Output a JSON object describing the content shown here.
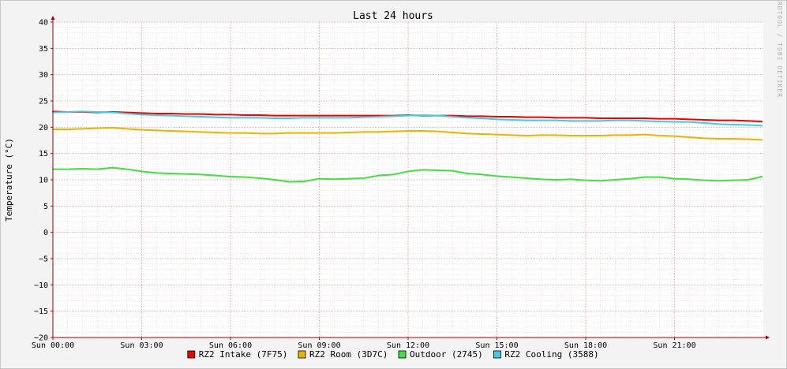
{
  "chart_data": {
    "type": "line",
    "title": "Last 24 hours",
    "ylabel": "Temperature (°C)",
    "xlabel": "",
    "watermark": "RRDTOOL / TOBI OETIKER",
    "ylim": [
      -20,
      40
    ],
    "y_ticks": [
      40,
      35,
      30,
      25,
      20,
      15,
      10,
      5,
      0,
      -5,
      -10,
      -15,
      -20
    ],
    "y_tick_labels": [
      "40",
      "35",
      "30",
      "25",
      "20",
      "15",
      "10",
      "5",
      "0",
      "−5",
      "−10",
      "−15",
      "−20"
    ],
    "xlim_hours": [
      0,
      24
    ],
    "x_ticks_hours": [
      0,
      3,
      6,
      9,
      12,
      15,
      18,
      21
    ],
    "x_tick_labels": [
      "Sun 00:00",
      "Sun 03:00",
      "Sun 06:00",
      "Sun 09:00",
      "Sun 12:00",
      "Sun 15:00",
      "Sun 18:00",
      "Sun 21:00"
    ],
    "grid": true,
    "legend_position": "bottom",
    "x_hours": [
      0,
      0.5,
      1,
      1.5,
      2,
      2.5,
      3,
      3.5,
      4,
      4.5,
      5,
      5.5,
      6,
      6.5,
      7,
      7.5,
      8,
      8.5,
      9,
      9.5,
      10,
      10.5,
      11,
      11.5,
      12,
      12.5,
      13,
      13.5,
      14,
      14.5,
      15,
      15.5,
      16,
      16.5,
      17,
      17.5,
      18,
      18.5,
      19,
      19.5,
      20,
      20.5,
      21,
      21.5,
      22,
      22.5,
      23,
      23.5,
      23.95
    ],
    "series": [
      {
        "name": "RZ2 Intake (7F75)",
        "color": "#ee0000",
        "values": [
          23.0,
          22.9,
          22.9,
          22.8,
          22.9,
          22.8,
          22.7,
          22.6,
          22.6,
          22.5,
          22.5,
          22.4,
          22.4,
          22.3,
          22.3,
          22.2,
          22.2,
          22.2,
          22.2,
          22.2,
          22.2,
          22.2,
          22.2,
          22.2,
          22.3,
          22.2,
          22.2,
          22.2,
          22.1,
          22.1,
          22.0,
          22.0,
          21.9,
          21.9,
          21.8,
          21.8,
          21.8,
          21.7,
          21.7,
          21.7,
          21.7,
          21.6,
          21.6,
          21.5,
          21.4,
          21.3,
          21.3,
          21.2,
          21.1
        ]
      },
      {
        "name": "RZ2 Room (3D7C)",
        "color": "#e8b400",
        "values": [
          19.6,
          19.6,
          19.7,
          19.8,
          19.9,
          19.7,
          19.5,
          19.4,
          19.3,
          19.2,
          19.1,
          19.0,
          18.9,
          18.9,
          18.8,
          18.8,
          18.9,
          18.9,
          18.9,
          18.9,
          19.0,
          19.1,
          19.1,
          19.2,
          19.3,
          19.3,
          19.2,
          19.0,
          18.8,
          18.7,
          18.6,
          18.5,
          18.4,
          18.5,
          18.5,
          18.4,
          18.4,
          18.4,
          18.5,
          18.5,
          18.6,
          18.4,
          18.3,
          18.1,
          17.9,
          17.8,
          17.8,
          17.7,
          17.6
        ]
      },
      {
        "name": "Outdoor (2745)",
        "color": "#44dd44",
        "values": [
          12.0,
          12.0,
          12.1,
          12.0,
          12.3,
          12.0,
          11.6,
          11.3,
          11.2,
          11.1,
          11.0,
          10.8,
          10.6,
          10.5,
          10.3,
          10.0,
          9.6,
          9.7,
          10.2,
          10.1,
          10.2,
          10.3,
          10.8,
          11.0,
          11.6,
          11.9,
          11.8,
          11.7,
          11.2,
          11.0,
          10.7,
          10.5,
          10.3,
          10.1,
          10.0,
          10.1,
          9.9,
          9.8,
          10.0,
          10.2,
          10.5,
          10.5,
          10.2,
          10.1,
          9.9,
          9.8,
          9.9,
          10.0,
          10.6
        ]
      },
      {
        "name": "RZ2 Cooling (3588)",
        "color": "#44ccdd",
        "values": [
          22.8,
          22.9,
          23.0,
          22.9,
          22.8,
          22.6,
          22.4,
          22.3,
          22.2,
          22.1,
          22.0,
          21.9,
          21.8,
          21.8,
          21.8,
          21.7,
          21.7,
          21.8,
          21.8,
          21.8,
          21.8,
          21.9,
          22.0,
          22.1,
          22.2,
          22.3,
          22.2,
          22.0,
          21.8,
          21.7,
          21.5,
          21.4,
          21.3,
          21.3,
          21.3,
          21.2,
          21.2,
          21.2,
          21.3,
          21.3,
          21.2,
          21.1,
          21.0,
          21.0,
          20.8,
          20.6,
          20.5,
          20.4,
          20.3
        ]
      }
    ]
  }
}
